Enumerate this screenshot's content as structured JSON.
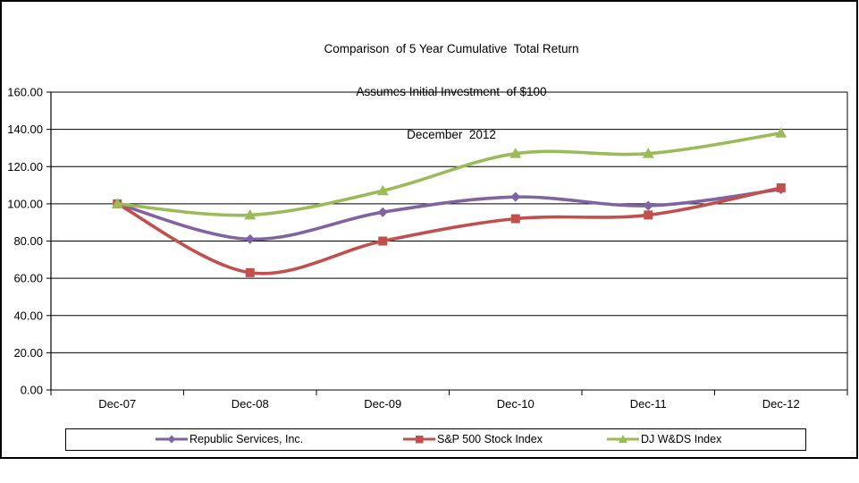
{
  "chart_data": {
    "type": "line",
    "smoothed": true,
    "title": "Comparison of 5 Year Cumulative Total Return",
    "title_lines": [
      "Comparison  of 5 Year Cumulative  Total Return",
      "Assumes Initial Investment  of $100",
      "December  2012"
    ],
    "categories": [
      "Dec-07",
      "Dec-08",
      "Dec-09",
      "Dec-10",
      "Dec-11",
      "Dec-12"
    ],
    "series": [
      {
        "name": "Republic Services, Inc.",
        "color": "#8064A2",
        "marker": "diamond",
        "values": [
          100,
          81,
          95.5,
          103.7,
          99,
          107.8
        ]
      },
      {
        "name": "S&P 500 Stock Index",
        "color": "#C0504D",
        "marker": "square",
        "values": [
          100,
          63,
          80,
          92,
          94,
          108.6
        ]
      },
      {
        "name": "DJ W&DS Index",
        "color": "#9BBB59",
        "marker": "triangle",
        "values": [
          100,
          94,
          107,
          127,
          127,
          138
        ]
      }
    ],
    "y_ticks": [
      "0.00",
      "20.00",
      "40.00",
      "60.00",
      "80.00",
      "100.00",
      "120.00",
      "140.00",
      "160.00"
    ],
    "ylim": [
      0,
      160
    ],
    "xlabel": "",
    "ylabel": "",
    "grid": true,
    "legend_position": "bottom",
    "axis_color": "#000000",
    "frame_color": "#000000",
    "background_color": "#FFFFFF"
  }
}
